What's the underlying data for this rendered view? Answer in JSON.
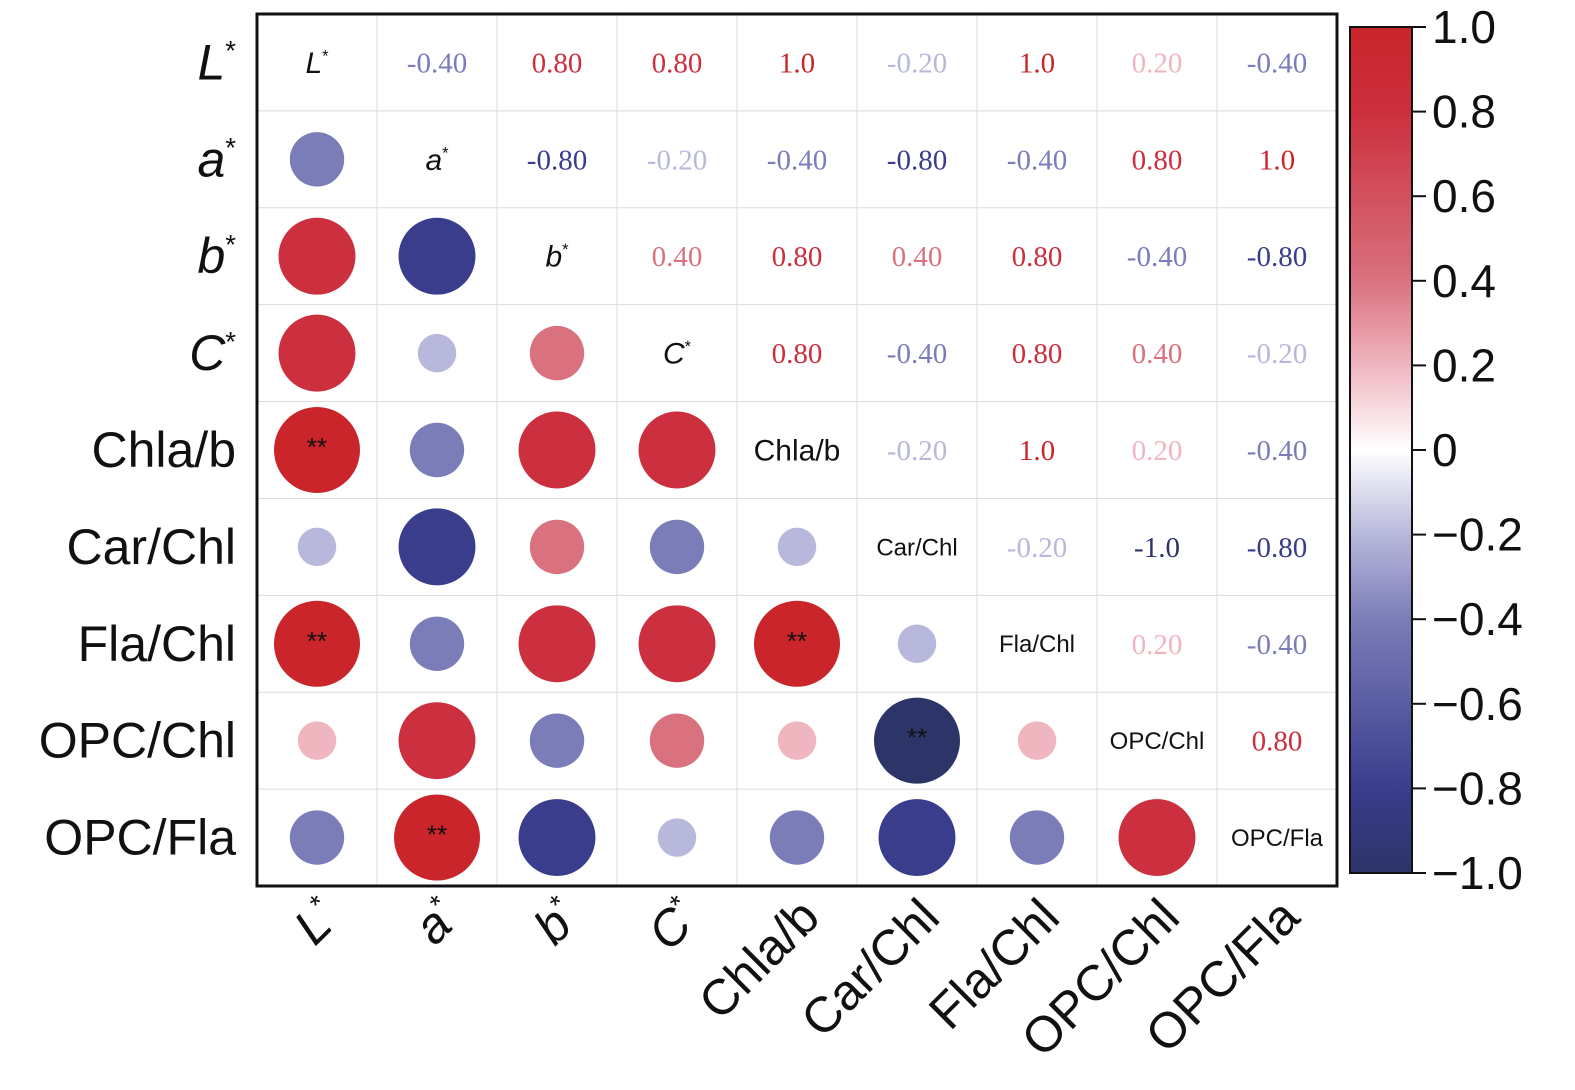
{
  "chart_data": {
    "type": "heatmap",
    "subtype": "correlation-matrix",
    "variables": [
      "L*",
      "a*",
      "b*",
      "C*",
      "Chla/b",
      "Car/Chl",
      "Fla/Chl",
      "OPC/Chl",
      "OPC/Fla"
    ],
    "matrix": [
      [
        1.0,
        -0.4,
        0.8,
        0.8,
        1.0,
        -0.2,
        1.0,
        0.2,
        -0.4
      ],
      [
        -0.4,
        1.0,
        -0.8,
        -0.2,
        -0.4,
        -0.8,
        -0.4,
        0.8,
        1.0
      ],
      [
        0.8,
        -0.8,
        1.0,
        0.4,
        0.8,
        0.4,
        0.8,
        -0.4,
        -0.8
      ],
      [
        0.8,
        -0.2,
        0.4,
        1.0,
        0.8,
        -0.4,
        0.8,
        0.4,
        -0.2
      ],
      [
        1.0,
        -0.4,
        0.8,
        0.8,
        1.0,
        -0.2,
        1.0,
        0.2,
        -0.4
      ],
      [
        -0.2,
        -0.8,
        0.4,
        -0.4,
        -0.2,
        1.0,
        -0.2,
        -1.0,
        -0.8
      ],
      [
        1.0,
        -0.4,
        0.8,
        0.8,
        1.0,
        -0.2,
        1.0,
        0.2,
        -0.4
      ],
      [
        0.2,
        0.8,
        -0.4,
        0.4,
        0.2,
        -1.0,
        0.2,
        1.0,
        0.8
      ],
      [
        -0.4,
        1.0,
        -0.8,
        -0.2,
        -0.4,
        -0.8,
        -0.4,
        0.8,
        1.0
      ]
    ],
    "value_labels": [
      [
        "",
        "-0.40",
        "0.80",
        "0.80",
        "1.0",
        "-0.20",
        "1.0",
        "0.20",
        "-0.40"
      ],
      [
        "",
        "",
        "-0.80",
        "-0.20",
        "-0.40",
        "-0.80",
        "-0.40",
        "0.80",
        "1.0"
      ],
      [
        "",
        "",
        "",
        "0.40",
        "0.80",
        "0.40",
        "0.80",
        "-0.40",
        "-0.80"
      ],
      [
        "",
        "",
        "",
        "",
        "0.80",
        "-0.40",
        "0.80",
        "0.40",
        "-0.20"
      ],
      [
        "",
        "",
        "",
        "",
        "",
        "-0.20",
        "1.0",
        "0.20",
        "-0.40"
      ],
      [
        "",
        "",
        "",
        "",
        "",
        "",
        "-0.20",
        "-1.0",
        "-0.80"
      ],
      [
        "",
        "",
        "",
        "",
        "",
        "",
        "",
        "0.20",
        "-0.40"
      ],
      [
        "",
        "",
        "",
        "",
        "",
        "",
        "",
        "",
        "0.80"
      ],
      [
        "",
        "",
        "",
        "",
        "",
        "",
        "",
        "",
        ""
      ]
    ],
    "significance_marker": "**",
    "upper": "numbers",
    "lower": "circles",
    "colorbar": {
      "range": [
        -1.0,
        1.0
      ],
      "ticks": [
        "1.0",
        "0.8",
        "0.6",
        "0.4",
        "0.2",
        "0",
        "−0.2",
        "−0.4",
        "−0.6",
        "−0.8",
        "−1.0"
      ],
      "tick_values": [
        1.0,
        0.8,
        0.6,
        0.4,
        0.2,
        0,
        -0.2,
        -0.4,
        -0.6,
        -0.8,
        -1.0
      ],
      "colors": {
        "neg1": "#2c3468",
        "neg08": "#393d8c",
        "neg04": "#7b7db8",
        "neg02": "#b8b8dc",
        "zero": "#ffffff",
        "pos02": "#f0b6c0",
        "pos04": "#d9717f",
        "pos08": "#cc2f3d",
        "pos1": "#c9252b"
      },
      "placement": "right"
    }
  }
}
